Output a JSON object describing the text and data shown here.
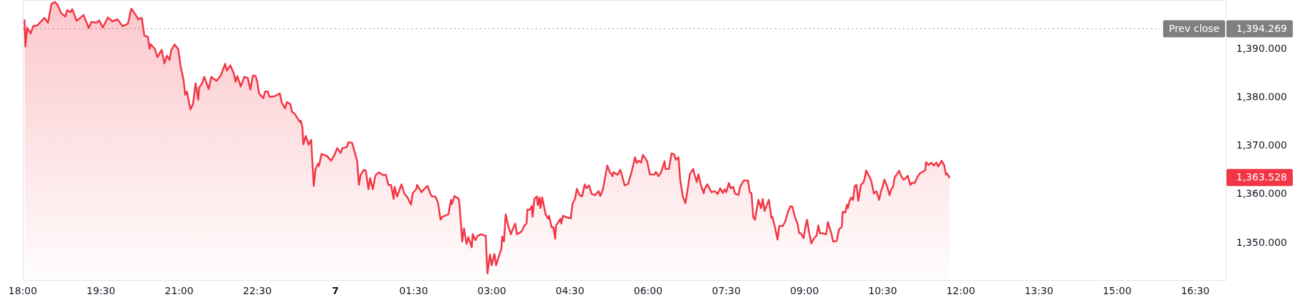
{
  "chart_data": {
    "type": "area",
    "color": "#f23645",
    "x": [
      "--01-06T18:02",
      "--01-06T18:03",
      "--01-06T18:05",
      "--01-06T18:09",
      "--01-06T18:12",
      "--01-06T18:17",
      "--01-06T18:25",
      "--01-06T18:29",
      "--01-06T18:33",
      "--01-06T18:37",
      "--01-06T18:40",
      "--01-06T18:44",
      "--01-06T18:49",
      "--01-06T18:51",
      "--01-06T18:55",
      "--01-06T18:57",
      "--01-06T19:02",
      "--01-06T19:06",
      "--01-06T19:10",
      "--01-06T19:16",
      "--01-06T19:19",
      "--01-06T19:25",
      "--01-06T19:28",
      "--01-06T19:32",
      "--01-06T19:38",
      "--01-06T19:43",
      "--01-06T19:49",
      "--01-06T19:55",
      "--01-06T20:01",
      "--01-06T20:05",
      "--01-06T20:10",
      "--01-06T20:13",
      "--01-06T20:17",
      "--01-06T20:20",
      "--01-06T20:24",
      "--01-06T20:26",
      "--01-06T20:27",
      "--01-06T20:32",
      "--01-06T20:35",
      "--01-06T20:40",
      "--01-06T20:43",
      "--01-06T20:46",
      "--01-06T20:49",
      "--01-06T20:51",
      "--01-06T20:55",
      "--01-06T20:59",
      "--01-06T21:02",
      "--01-06T21:05",
      "--01-06T21:07",
      "--01-06T21:09",
      "--01-06T21:13",
      "--01-06T21:16",
      "--01-06T21:19",
      "--01-06T21:22",
      "--01-06T21:23",
      "--01-06T21:26",
      "--01-06T21:29",
      "--01-06T21:34",
      "--01-06T21:37",
      "--01-06T21:43",
      "--01-06T21:48",
      "--01-06T21:53",
      "--01-06T21:55",
      "--01-06T21:59",
      "--01-06T22:03",
      "--01-06T22:05",
      "--01-06T22:07",
      "--01-06T22:11",
      "--01-06T22:15",
      "--01-06T22:19",
      "--01-06T22:22",
      "--01-06T22:25",
      "--01-06T22:28",
      "--01-06T22:30",
      "--01-06T22:32",
      "--01-06T22:37",
      "--01-06T22:39",
      "--01-06T22:42",
      "--01-06T22:44",
      "--01-06T22:50",
      "--01-06T22:56",
      "--01-06T22:58",
      "--01-06T23:02",
      "--01-06T23:04",
      "--01-06T23:08",
      "--01-06T23:10",
      "--01-06T23:13",
      "--01-06T23:19",
      "--01-06T23:20",
      "--01-06T23:22",
      "--01-06T23:23",
      "--01-06T23:26",
      "--01-06T23:29",
      "--01-06T23:32",
      "--01-06T23:34",
      "--01-06T23:35",
      "--01-06T23:37",
      "--01-06T23:40",
      "--01-06T23:41",
      "--01-06T23:44",
      "--01-06T23:50",
      "--01-06T23:55",
      "--01-06T23:59",
      "--01-07T00:02",
      "--01-07T00:06",
      "--01-07T00:08",
      "--01-07T00:13",
      "--01-07T00:15",
      "--01-07T00:19",
      "--01-07T00:22",
      "--01-07T00:25",
      "--01-07T00:27",
      "--01-07T00:29",
      "--01-07T00:33",
      "--01-07T00:35",
      "--01-07T00:38",
      "--01-07T00:40",
      "--01-07T00:43",
      "--01-07T00:46",
      "--01-07T00:50",
      "--01-07T00:55",
      "--01-07T00:58",
      "--01-07T01:01",
      "--01-07T01:04",
      "--01-07T01:07",
      "--01-07T01:08",
      "--01-07T01:11",
      "--01-07T01:14",
      "--01-07T01:16",
      "--01-07T01:19",
      "--01-07T01:23",
      "--01-07T01:27",
      "--01-07T01:29",
      "--01-07T01:33",
      "--01-07T01:34",
      "--01-07T01:39",
      "--01-07T01:43",
      "--01-07T01:46",
      "--01-07T01:49",
      "--01-07T01:51",
      "--01-07T01:55",
      "--01-07T01:58",
      "--01-07T02:01",
      "--01-07T02:03",
      "--01-07T02:10",
      "--01-07T02:13",
      "--01-07T02:14",
      "--01-07T02:17",
      "--01-07T02:22",
      "--01-07T02:23",
      "--01-07T02:26",
      "--01-07T02:28",
      "--01-07T02:31",
      "--01-07T02:33",
      "--01-07T02:37",
      "--01-07T02:38",
      "--01-07T02:41",
      "--01-07T02:44",
      "--01-07T02:48",
      "--01-07T02:52",
      "--01-07T02:53",
      "--01-07T02:55",
      "--01-07T02:58",
      "--01-07T03:00",
      "--01-07T03:03",
      "--01-07T03:05",
      "--01-07T03:07",
      "--01-07T03:11",
      "--01-07T03:12",
      "--01-07T03:14",
      "--01-07T03:16",
      "--01-07T03:19",
      "--01-07T03:22",
      "--01-07T03:24",
      "--01-07T03:27",
      "--01-07T03:29",
      "--01-07T03:34",
      "--01-07T03:38",
      "--01-07T03:40",
      "--01-07T03:41",
      "--01-07T03:44",
      "--01-07T03:46",
      "--01-07T03:47",
      "--01-07T03:49",
      "--01-07T03:52",
      "--01-07T03:53",
      "--01-07T03:55",
      "--01-07T03:56",
      "--01-07T03:58",
      "--01-07T04:02",
      "--01-07T04:05",
      "--01-07T04:06",
      "--01-07T04:09",
      "--01-07T04:11",
      "--01-07T04:13",
      "--01-07T04:14",
      "--01-07T04:19",
      "--01-07T04:20",
      "--01-07T04:22",
      "--01-07T04:28",
      "--01-07T04:31",
      "--01-07T04:33",
      "--01-07T04:36",
      "--01-07T04:38",
      "--01-07T04:41",
      "--01-07T04:44",
      "--01-07T04:47",
      "--01-07T04:49",
      "--01-07T04:52",
      "--01-07T04:55",
      "--01-07T04:59",
      "--01-07T05:03",
      "--01-07T05:05",
      "--01-07T05:08",
      "--01-07T05:13",
      "--01-07T05:16",
      "--01-07T05:19",
      "--01-07T05:20",
      "--01-07T05:25",
      "--01-07T05:28",
      "--01-07T05:30",
      "--01-07T05:33",
      "--01-07T05:37",
      "--01-07T05:41",
      "--01-07T05:45",
      "--01-07T05:47",
      "--01-07T05:49",
      "--01-07T05:52",
      "--01-07T05:54",
      "--01-07T05:57",
      "--01-07T05:59",
      "--01-07T06:02",
      "--01-07T06:07",
      "--01-07T06:09",
      "--01-07T06:12",
      "--01-07T06:15",
      "--01-07T06:19",
      "--01-07T06:20",
      "--01-07T06:24",
      "--01-07T06:27",
      "--01-07T06:30",
      "--01-07T06:32",
      "--01-07T06:35",
      "--01-07T06:37",
      "--01-07T06:40",
      "--01-07T06:43",
      "--01-07T06:46",
      "--01-07T06:48",
      "--01-07T06:52",
      "--01-07T06:53",
      "--01-07T06:56",
      "--01-07T06:58",
      "--01-07T07:01",
      "--01-07T07:04",
      "--01-07T07:05",
      "--01-07T07:08",
      "--01-07T07:13",
      "--01-07T07:17",
      "--01-07T07:20",
      "--01-07T07:23",
      "--01-07T07:26",
      "--01-07T07:28",
      "--01-07T07:30",
      "--01-07T07:33",
      "--01-07T07:35",
      "--01-07T07:38",
      "--01-07T07:40",
      "--01-07T07:44",
      "--01-07T07:46",
      "--01-07T07:47",
      "--01-07T07:50",
      "--01-07T07:55",
      "--01-07T07:57",
      "--01-07T07:59",
      "--01-07T08:01",
      "--01-07T08:03",
      "--01-07T08:07",
      "--01-07T08:10",
      "--01-07T08:12",
      "--01-07T08:14",
      "--01-07T08:19",
      "--01-07T08:22",
      "--01-07T08:23",
      "--01-07T08:26",
      "--01-07T08:29",
      "--01-07T08:31",
      "--01-07T08:35",
      "--01-07T08:38",
      "--01-07T08:41",
      "--01-07T08:44",
      "--01-07T08:46",
      "--01-07T08:49",
      "--01-07T08:52",
      "--01-07T08:54",
      "--01-07T08:56",
      "--01-07T08:59",
      "--01-07T09:01",
      "--01-07T09:03",
      "--01-07T09:05",
      "--01-07T09:08",
      "--01-07T09:11",
      "--01-07T09:14",
      "--01-07T09:16",
      "--01-07T09:18",
      "--01-07T09:21",
      "--01-07T09:25",
      "--01-07T09:27",
      "--01-07T09:31",
      "--01-07T09:33",
      "--01-07T09:37",
      "--01-07T09:40",
      "--01-07T09:43",
      "--01-07T09:44",
      "--01-07T09:47",
      "--01-07T09:49",
      "--01-07T09:50",
      "--01-07T09:52",
      "--01-07T09:54",
      "--01-07T09:56",
      "--01-07T09:58",
      "--01-07T10:00",
      "--01-07T10:02",
      "--01-07T10:05",
      "--01-07T10:08",
      "--01-07T10:10",
      "--01-07T10:11",
      "--01-07T10:14",
      "--01-07T10:17",
      "--01-07T10:20",
      "--01-07T10:23",
      "--01-07T10:26",
      "--01-07T10:28",
      "--01-07T10:30",
      "--01-07T10:32",
      "--01-07T10:35",
      "--01-07T10:38",
      "--01-07T10:40",
      "--01-07T10:42",
      "--01-07T10:44",
      "--01-07T10:46",
      "--01-07T10:49",
      "--01-07T10:51",
      "--01-07T10:54",
      "--01-07T10:56",
      "--01-07T10:59",
      "--01-07T11:02",
      "--01-07T11:04",
      "--01-07T11:07",
      "--01-07T11:10",
      "--01-07T11:13",
      "--01-07T11:16",
      "--01-07T11:19",
      "--01-07T11:20",
      "--01-07T11:23",
      "--01-07T11:26",
      "--01-07T11:29",
      "--01-07T11:32",
      "--01-07T11:34",
      "--01-07T11:38",
      "--01-07T11:41",
      "--01-07T11:43",
      "--01-07T11:44",
      "--01-07T11:47"
    ],
    "values": [
      1396.0,
      1390.6,
      1394.5,
      1393.3,
      1394.8,
      1395.0,
      1396.5,
      1395.5,
      1399.4,
      1399.8,
      1399.2,
      1397.5,
      1396.8,
      1398.1,
      1397.7,
      1398.3,
      1395.9,
      1396.5,
      1397.1,
      1394.4,
      1395.7,
      1395.5,
      1396.0,
      1394.5,
      1396.6,
      1395.8,
      1396.2,
      1394.8,
      1395.3,
      1398.4,
      1397.1,
      1396.2,
      1396.5,
      1392.8,
      1392.6,
      1390.1,
      1391.1,
      1390.1,
      1388.4,
      1389.9,
      1387.1,
      1388.7,
      1387.8,
      1389.9,
      1391.0,
      1390.0,
      1386.2,
      1383.8,
      1380.6,
      1381.3,
      1377.6,
      1378.7,
      1383.0,
      1379.6,
      1382.1,
      1382.8,
      1384.3,
      1381.8,
      1384.3,
      1383.5,
      1384.6,
      1387.0,
      1385.6,
      1386.7,
      1385.0,
      1383.3,
      1384.5,
      1382.3,
      1384.3,
      1384.1,
      1381.7,
      1384.6,
      1384.5,
      1383.3,
      1380.9,
      1379.9,
      1381.3,
      1381.3,
      1380.2,
      1380.3,
      1380.9,
      1379.1,
      1377.8,
      1379.1,
      1378.7,
      1377.1,
      1376.7,
      1375.0,
      1375.3,
      1373.8,
      1370.4,
      1372.1,
      1370.3,
      1371.3,
      1365.0,
      1361.8,
      1365.2,
      1366.4,
      1365.9,
      1368.4,
      1368.0,
      1367.0,
      1368.2,
      1369.6,
      1368.6,
      1369.6,
      1369.8,
      1370.8,
      1370.7,
      1368.9,
      1366.9,
      1362.0,
      1364.1,
      1365.1,
      1364.9,
      1361.1,
      1363.4,
      1361.1,
      1363.9,
      1364.6,
      1364.0,
      1364.1,
      1362.0,
      1362.0,
      1359.1,
      1361.6,
      1359.6,
      1361.1,
      1362.1,
      1360.3,
      1359.4,
      1357.9,
      1360.3,
      1361.1,
      1362.0,
      1360.5,
      1361.3,
      1361.8,
      1360.3,
      1359.6,
      1359.6,
      1358.4,
      1354.8,
      1355.4,
      1355.9,
      1358.9,
      1358.0,
      1359.7,
      1359.1,
      1357.6,
      1350.3,
      1353.0,
      1349.8,
      1351.2,
      1349.1,
      1351.8,
      1350.6,
      1351.5,
      1351.8,
      1351.5,
      1351.5,
      1343.7,
      1347.6,
      1345.4,
      1347.7,
      1345.4,
      1346.6,
      1348.8,
      1351.3,
      1350.3,
      1355.9,
      1353.5,
      1351.8,
      1352.8,
      1354.0,
      1351.8,
      1352.3,
      1353.7,
      1354.0,
      1356.9,
      1356.9,
      1357.6,
      1355.4,
      1359.1,
      1359.6,
      1357.8,
      1359.4,
      1357.2,
      1359.4,
      1355.9,
      1355.0,
      1355.6,
      1353.2,
      1353.2,
      1350.9,
      1353.6,
      1355.0,
      1354.0,
      1355.6,
      1355.2,
      1355.1,
      1358.1,
      1359.2,
      1361.2,
      1359.9,
      1359.6,
      1362.1,
      1361.3,
      1361.9,
      1360.1,
      1359.9,
      1360.7,
      1359.7,
      1361.1,
      1366.0,
      1364.6,
      1363.8,
      1364.6,
      1364.1,
      1365.1,
      1363.9,
      1361.9,
      1362.2,
      1364.7,
      1367.7,
      1366.5,
      1367.0,
      1366.6,
      1368.2,
      1367.4,
      1366.8,
      1364.2,
      1364.1,
      1364.7,
      1363.8,
      1364.6,
      1366.9,
      1365.3,
      1365.3,
      1368.5,
      1368.3,
      1367.2,
      1367.7,
      1363.0,
      1359.6,
      1358.2,
      1361.6,
      1364.2,
      1365.3,
      1364.4,
      1362.6,
      1364.2,
      1361.8,
      1360.3,
      1361.1,
      1362.1,
      1360.5,
      1360.7,
      1360.1,
      1361.3,
      1360.3,
      1361.1,
      1360.5,
      1362.4,
      1361.3,
      1361.6,
      1360.2,
      1359.9,
      1361.6,
      1361.9,
      1362.9,
      1362.9,
      1360.5,
      1360.3,
      1355.4,
      1354.8,
      1358.9,
      1357.2,
      1359.1,
      1356.6,
      1358.9,
      1355.2,
      1355.4,
      1353.3,
      1350.7,
      1353.5,
      1353.5,
      1354.5,
      1356.4,
      1357.6,
      1357.5,
      1355.4,
      1354.0,
      1352.0,
      1352.0,
      1351.0,
      1353.2,
      1354.8,
      1352.5,
      1349.9,
      1351.0,
      1351.5,
      1353.6,
      1352.0,
      1352.0,
      1351.8,
      1354.3,
      1352.0,
      1350.3,
      1350.4,
      1352.9,
      1353.3,
      1356.4,
      1356.3,
      1357.9,
      1357.2,
      1358.7,
      1359.4,
      1358.9,
      1361.8,
      1362.0,
      1358.7,
      1362.0,
      1362.5,
      1363.8,
      1365.0,
      1364.0,
      1362.8,
      1360.2,
      1360.7,
      1358.9,
      1360.6,
      1361.6,
      1363.1,
      1361.8,
      1359.9,
      1361.1,
      1361.6,
      1363.6,
      1364.1,
      1364.9,
      1364.0,
      1363.1,
      1363.3,
      1363.9,
      1362.0,
      1362.4,
      1362.4,
      1363.6,
      1364.4,
      1364.7,
      1365.0,
      1366.7,
      1366.1,
      1366.6,
      1366.0,
      1366.6,
      1365.8,
      1367.0,
      1366.0,
      1364.1,
      1364.4,
      1363.528
    ],
    "xlim": [
      "--01-06T18:00",
      "--01-07T17:06"
    ],
    "xticks": [
      {
        "value": "--01-06T18:00",
        "label": "18:00"
      },
      {
        "value": "--01-06T19:30",
        "label": "19:30"
      },
      {
        "value": "--01-06T21:00",
        "label": "21:00"
      },
      {
        "value": "--01-06T22:30",
        "label": "22:30"
      },
      {
        "value": "--01-07T00:00",
        "label": "7"
      },
      {
        "value": "--01-07T01:30",
        "label": "01:30"
      },
      {
        "value": "--01-07T03:00",
        "label": "03:00"
      },
      {
        "value": "--01-07T04:30",
        "label": "04:30"
      },
      {
        "value": "--01-07T06:00",
        "label": "06:00"
      },
      {
        "value": "--01-07T07:30",
        "label": "07:30"
      },
      {
        "value": "--01-07T09:00",
        "label": "09:00"
      },
      {
        "value": "--01-07T10:30",
        "label": "10:30"
      },
      {
        "value": "--01-07T12:00",
        "label": "12:00"
      },
      {
        "value": "--01-07T13:30",
        "label": "13:30"
      },
      {
        "value": "--01-07T15:00",
        "label": "15:00"
      },
      {
        "value": "--01-07T16:30",
        "label": "16:30"
      }
    ],
    "ylim": [
      1342.2,
      1400.2
    ],
    "yticks": [
      {
        "value": 1350,
        "label": "1,350.000"
      },
      {
        "value": 1360,
        "label": "1,360.000"
      },
      {
        "value": 1370,
        "label": "1,370.000"
      },
      {
        "value": 1380,
        "label": "1,380.000"
      },
      {
        "value": 1390,
        "label": "1,390.000"
      }
    ],
    "ref_lines": [
      {
        "axis": "y",
        "value": 1394.269,
        "label": "Prev close",
        "color": "#7f7f7f",
        "line_style": "dotted"
      }
    ],
    "annotations": [
      "1,394.269",
      "1,363.528"
    ]
  }
}
